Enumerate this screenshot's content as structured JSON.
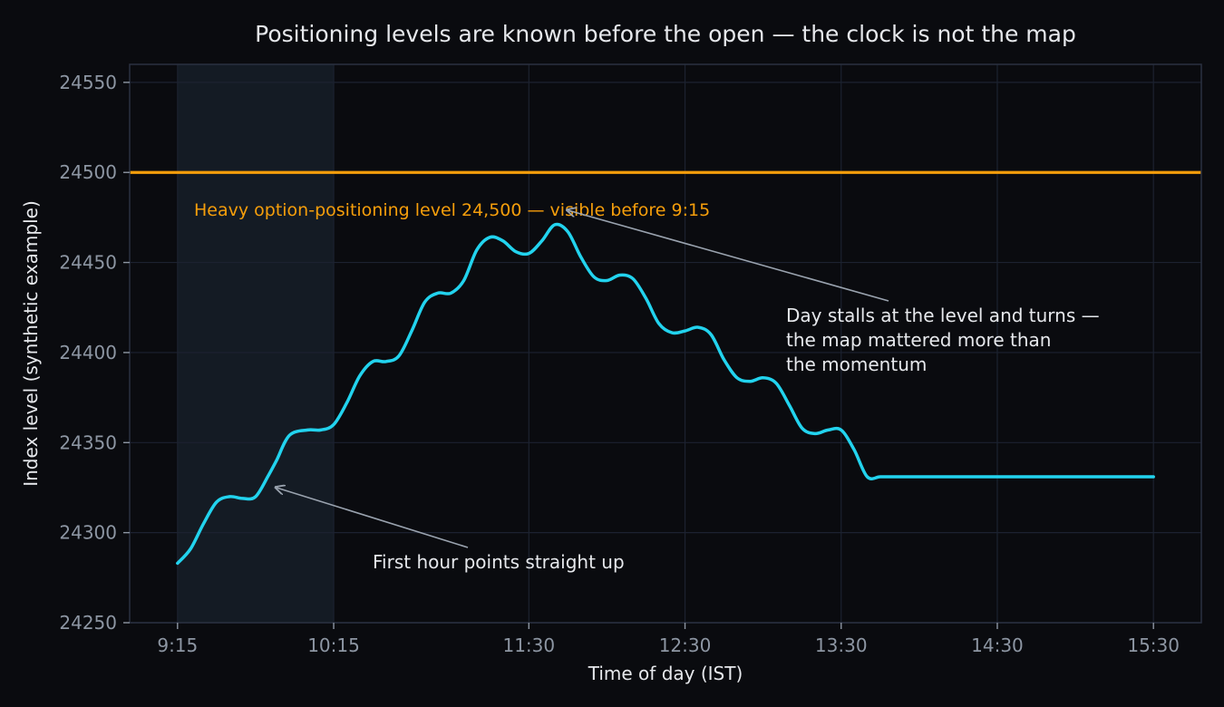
{
  "chart_data": {
    "type": "line",
    "title": "Positioning levels are known before the open — the clock is not the map",
    "xlabel": "Time of day (IST)",
    "ylabel": "Index level (synthetic example)",
    "x_ticks": [
      "9:15",
      "10:15",
      "11:30",
      "12:30",
      "13:30",
      "14:30",
      "15:30"
    ],
    "x_tick_minutes": [
      0,
      60,
      135,
      195,
      255,
      315,
      375
    ],
    "x_range_minutes": [
      -18.4,
      393.4
    ],
    "ylim": [
      24250,
      24560
    ],
    "y_ticks": [
      24250,
      24300,
      24350,
      24400,
      24450,
      24500,
      24550
    ],
    "grid": true,
    "line_color": "#22d3ee",
    "series": [
      {
        "x_minutes": [
          0,
          5,
          10,
          15,
          20,
          25,
          30,
          35,
          38,
          43,
          50,
          55,
          60,
          65,
          70,
          75,
          80,
          85,
          90,
          95,
          100,
          105,
          110,
          115,
          120,
          125,
          130,
          135,
          140,
          145,
          150,
          155,
          160,
          165,
          170,
          175,
          180,
          185,
          190,
          195,
          200,
          205,
          210,
          215,
          220,
          225,
          230,
          235,
          240,
          245,
          250,
          255,
          260,
          265,
          270,
          275,
          280,
          285,
          290,
          295,
          300,
          305,
          310,
          315,
          320,
          325,
          330,
          335,
          340,
          345,
          350,
          355,
          360,
          365,
          370,
          375
        ],
        "y": [
          24283,
          24291,
          24305,
          24317,
          24320,
          24319,
          24320,
          24332,
          24340,
          24354,
          24357,
          24357,
          24360,
          24372,
          24387,
          24395,
          24395,
          24398,
          24412,
          24428,
          24433,
          24433,
          24440,
          24457,
          24464,
          24462,
          24456,
          24455,
          24462,
          24471,
          24467,
          24453,
          24442,
          24440,
          24443,
          24441,
          24430,
          24416,
          24411,
          24412,
          24414,
          24410,
          24396,
          24386,
          24384,
          24386,
          24383,
          24371,
          24358,
          24355,
          24357,
          24357,
          24346,
          24331,
          24331,
          24331,
          24331,
          24331,
          24331,
          24331,
          24331,
          24331,
          24331,
          24331,
          24331,
          24331,
          24331,
          24331,
          24331,
          24331,
          24331,
          24331,
          24331,
          24331,
          24331,
          24331
        ]
      }
    ],
    "highlight_band": {
      "x_start_minutes": 0,
      "x_end_minutes": 60,
      "label": ""
    },
    "reference_line": {
      "y": 24500,
      "label": "Heavy option-positioning level 24,500 — visible before 9:15",
      "color": "#f59e0b"
    },
    "annotations": [
      {
        "lines": [
          "Day stalls at the level and turns —",
          "the map mattered more than",
          "the momentum"
        ],
        "target_x_minutes": 150,
        "target_y": 24479
      },
      {
        "lines": [
          "First hour points straight up"
        ],
        "target_x_minutes": 38,
        "target_y": 24325
      }
    ]
  }
}
